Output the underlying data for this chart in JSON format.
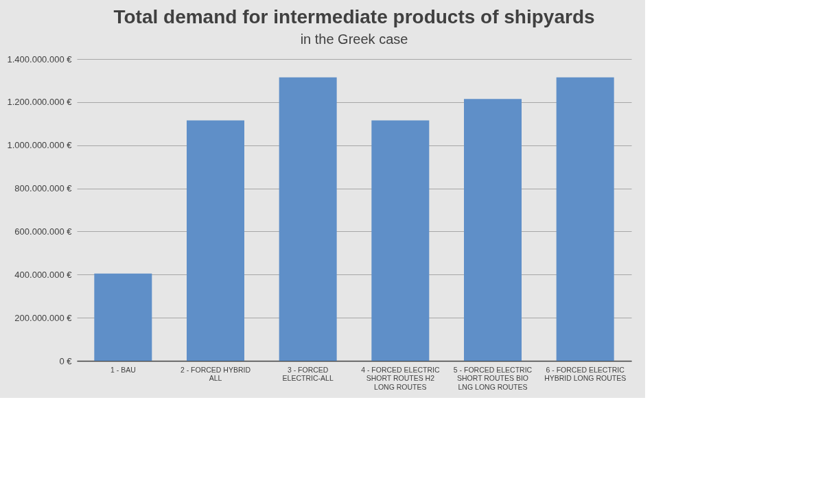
{
  "chart_data": {
    "type": "bar",
    "title": "Total demand for intermediate products of shipyards",
    "subtitle": "in the Greek case",
    "categories": [
      "1 - BAU",
      "2 - FORCED HYBRID ALL",
      "3 - FORCED ELECTRIC-ALL",
      "4 - FORCED ELECTRIC SHORT ROUTES H2 LONG ROUTES",
      "5 - FORCED ELECTRIC SHORT ROUTES BIO LNG LONG ROUTES",
      "6 - FORCED ELECTRIC HYBRID LONG ROUTES"
    ],
    "values": [
      405000000,
      1115000000,
      1315000000,
      1115000000,
      1215000000,
      1315000000
    ],
    "color": "#5f8fc8",
    "ylim": [
      0,
      1400000000
    ],
    "yticks": [
      {
        "value": 0,
        "label": "0 €"
      },
      {
        "value": 200000000,
        "label": "200.000.000 €"
      },
      {
        "value": 400000000,
        "label": "400.000.000 €"
      },
      {
        "value": 600000000,
        "label": "600.000.000 €"
      },
      {
        "value": 800000000,
        "label": "800.000.000 €"
      },
      {
        "value": 1000000000,
        "label": "1.000.000.000 €"
      },
      {
        "value": 1200000000,
        "label": "1.200.000.000 €"
      },
      {
        "value": 1400000000,
        "label": "1.400.000.000 €"
      }
    ],
    "grid": "y"
  }
}
